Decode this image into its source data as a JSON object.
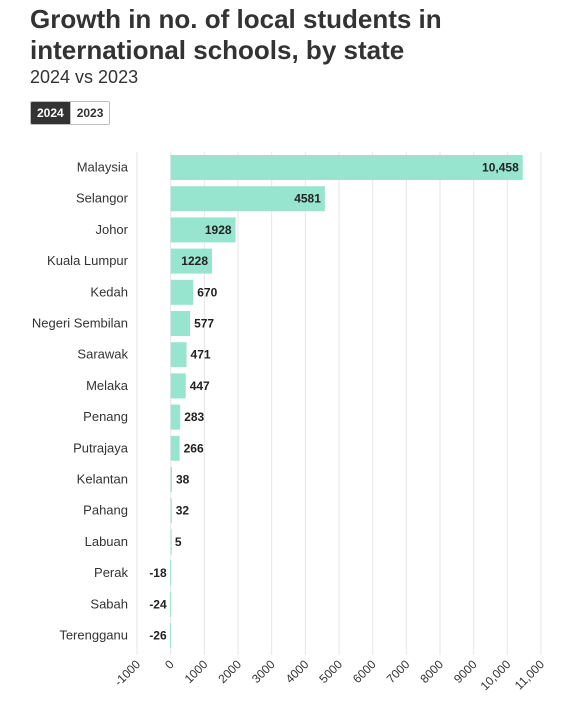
{
  "header": {
    "title": "Growth in no. of local students in international schools, by state",
    "subtitle": "2024 vs 2023"
  },
  "toggle": {
    "options": [
      "2024",
      "2023"
    ],
    "selected": "2024"
  },
  "colors": {
    "bar": "#98e5cf",
    "text": "#333333",
    "grid": "#e6e6e6"
  },
  "chart_data": {
    "type": "bar",
    "orientation": "horizontal",
    "categories": [
      "Malaysia",
      "Selangor",
      "Johor",
      "Kuala Lumpur",
      "Kedah",
      "Negeri Sembilan",
      "Sarawak",
      "Melaka",
      "Penang",
      "Putrajaya",
      "Kelantan",
      "Pahang",
      "Labuan",
      "Perak",
      "Sabah",
      "Terengganu"
    ],
    "values": [
      10458,
      4581,
      1928,
      1228,
      670,
      577,
      471,
      447,
      283,
      266,
      38,
      32,
      5,
      -18,
      -24,
      -26
    ],
    "value_labels": [
      "10,458",
      "4581",
      "1928",
      "1228",
      "670",
      "577",
      "471",
      "447",
      "283",
      "266",
      "38",
      "32",
      "5",
      "-18",
      "-24",
      "-26"
    ],
    "xlim": [
      -1000,
      11000
    ],
    "xticks": [
      -1000,
      0,
      1000,
      2000,
      3000,
      4000,
      5000,
      6000,
      7000,
      8000,
      9000,
      10000,
      11000
    ],
    "xtick_labels": [
      "-1000",
      "0",
      "1000",
      "2000",
      "3000",
      "4000",
      "5000",
      "6000",
      "7000",
      "8000",
      "9000",
      "10,000",
      "11,000"
    ],
    "grid": true,
    "legend": "none"
  }
}
